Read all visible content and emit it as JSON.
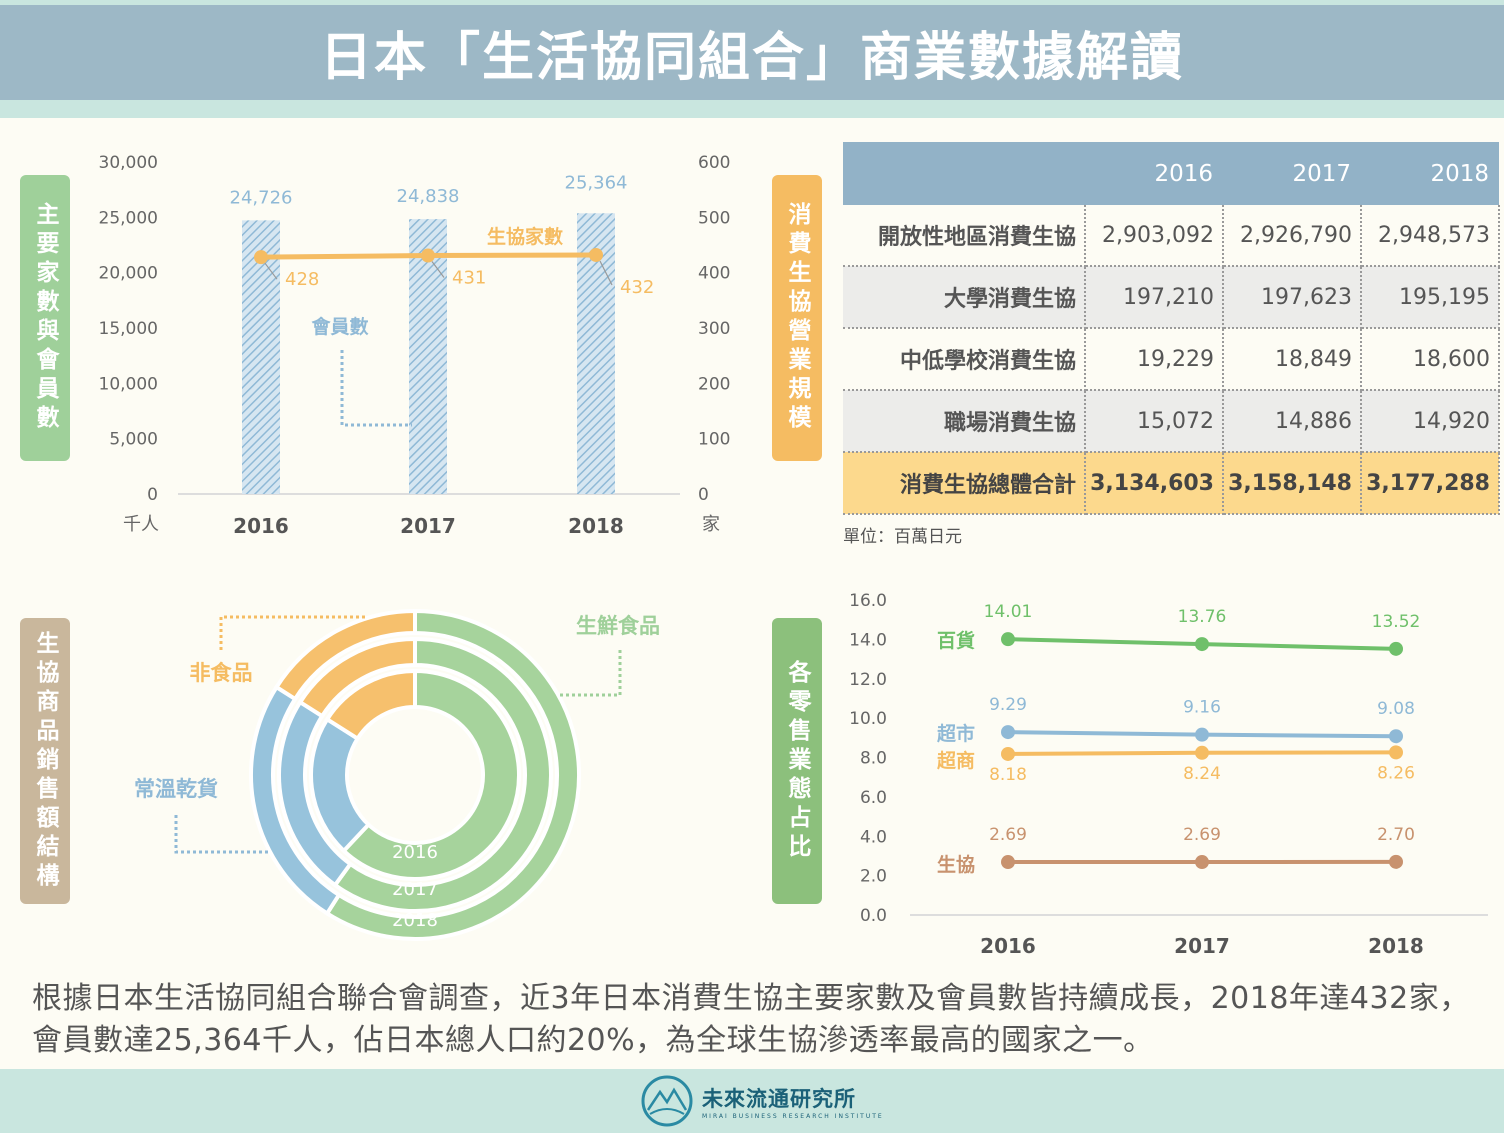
{
  "title": "日本「生活協同組合」商業數據解讀",
  "colors": {
    "blue": "#8fb9d6",
    "orange": "#f5bc62",
    "green": "#9fd09a",
    "tan": "#c9b79c",
    "line_green": "#6fc06a",
    "line_tan": "#c8926e"
  },
  "labels": {
    "chart1": "主要家數與會員數",
    "table": "消費生協營業規模",
    "donut": "生協商品銷售額結構",
    "lines": "各零售業態占比"
  },
  "chart_data": [
    {
      "type": "bar",
      "categories": [
        "2016",
        "2017",
        "2018"
      ],
      "series": [
        {
          "name": "會員數",
          "values": [
            24726,
            24838,
            25364
          ],
          "axis": "left"
        },
        {
          "name": "生協家數",
          "values": [
            428,
            431,
            432
          ],
          "axis": "right",
          "type": "line"
        }
      ],
      "y_left": {
        "min": 0,
        "max": 30000,
        "ticks": [
          "0",
          "5,000",
          "10,000",
          "15,000",
          "20,000",
          "25,000",
          "30,000"
        ],
        "unit": "千人"
      },
      "y_right": {
        "min": 0,
        "max": 600,
        "ticks": [
          "0",
          "100",
          "200",
          "300",
          "400",
          "500",
          "600"
        ],
        "unit": "家"
      },
      "bar_labels": [
        "24,726",
        "24,838",
        "25,364"
      ],
      "line_labels": [
        "428",
        "431",
        "432"
      ]
    },
    {
      "type": "table",
      "columns": [
        "",
        "2016",
        "2017",
        "2018"
      ],
      "rows": [
        [
          "開放性地區消費生協",
          "2,903,092",
          "2,926,790",
          "2,948,573"
        ],
        [
          "大學消費生協",
          "197,210",
          "197,623",
          "195,195"
        ],
        [
          "中低學校消費生協",
          "19,229",
          "18,849",
          "18,600"
        ],
        [
          "職場消費生協",
          "15,072",
          "14,886",
          "14,920"
        ],
        [
          "消費生協總體合計",
          "3,134,603",
          "3,158,148",
          "3,177,288"
        ]
      ],
      "unit": "單位：百萬日元"
    },
    {
      "type": "pie",
      "rings": [
        "2016",
        "2017",
        "2018"
      ],
      "categories": [
        "生鮮食品",
        "常溫乾貨",
        "非食品"
      ],
      "values_by_ring": [
        [
          0.62,
          0.22,
          0.16
        ],
        [
          0.6,
          0.24,
          0.16
        ],
        [
          0.59,
          0.25,
          0.16
        ]
      ]
    },
    {
      "type": "line",
      "x": [
        "2016",
        "2017",
        "2018"
      ],
      "series": [
        {
          "name": "百貨",
          "values": [
            14.01,
            13.76,
            13.52
          ],
          "labels": [
            "14.01",
            "13.76",
            "13.52"
          ]
        },
        {
          "name": "超市",
          "values": [
            9.29,
            9.16,
            9.08
          ],
          "labels": [
            "9.29",
            "9.16",
            "9.08"
          ]
        },
        {
          "name": "超商",
          "values": [
            8.18,
            8.24,
            8.26
          ],
          "labels": [
            "8.18",
            "8.24",
            "8.26"
          ]
        },
        {
          "name": "生協",
          "values": [
            2.69,
            2.69,
            2.7
          ],
          "labels": [
            "2.69",
            "2.69",
            "2.70"
          ]
        }
      ],
      "ylim": [
        0,
        16
      ],
      "ticks": [
        "0.0",
        "2.0",
        "4.0",
        "6.0",
        "8.0",
        "10.0",
        "12.0",
        "14.0",
        "16.0"
      ]
    }
  ],
  "paragraph": "根據日本生活協同組合聯合會調查，近3年日本消費生協主要家數及會員數皆持續成長，2018年達432家，會員數達25,364千人，佔日本總人口約20%，為全球生協滲透率最高的國家之一。",
  "logo": {
    "name": "未來流通研究所",
    "sub": "MIRAI BUSINESS RESEARCH INSTITUTE"
  }
}
